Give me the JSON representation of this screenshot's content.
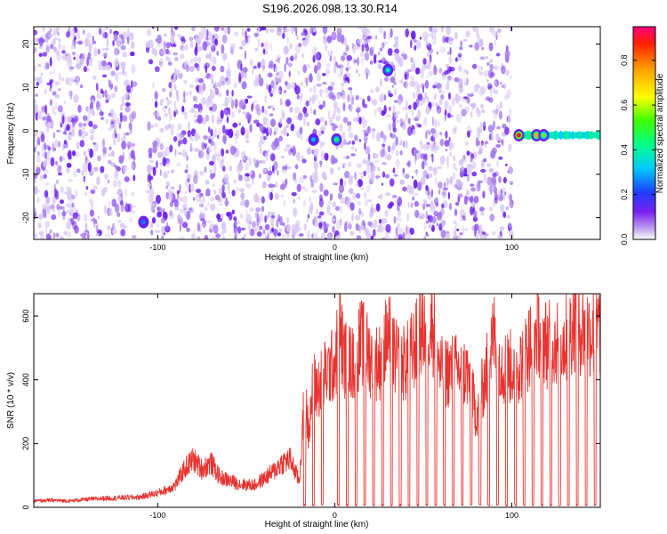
{
  "figure_title": "S196.2026.098.13.30.R14",
  "colors": {
    "snr_line": "#e8332f",
    "frame": "#000000",
    "speckle_light": "#d9c8f5",
    "speckle_mid": "#a37ae8",
    "speckle_dark": "#6a1cf2"
  },
  "chart_data": [
    {
      "type": "heatmap",
      "title": "",
      "xlabel": "Height of straight line (km)",
      "ylabel": "Frequency (Hz)",
      "xlim": [
        -170,
        150
      ],
      "ylim": [
        -25,
        24
      ],
      "x_ticks": [
        -100,
        0,
        100
      ],
      "x_tick_labels": [
        "-100",
        "0",
        "100"
      ],
      "y_ticks": [
        -20,
        -10,
        0,
        10,
        20
      ],
      "y_tick_labels": [
        "-20",
        "-10",
        "0",
        "10",
        "20"
      ],
      "colorbar": {
        "label": "Normalized spectral amplitude",
        "range": [
          0.0,
          0.95
        ],
        "ticks": [
          0.0,
          0.2,
          0.4,
          0.6,
          0.8
        ],
        "tick_labels": [
          "0.0",
          "0.2",
          "0.4",
          "0.6",
          "0.8"
        ],
        "colormap": "rainbow"
      },
      "noise_region": {
        "x_range": [
          -170,
          100
        ],
        "y_range": [
          -25,
          24
        ],
        "typical_amplitude": 0.1
      },
      "blank_bands_x": [
        [
          -113,
          -106
        ],
        [
          100,
          150
        ]
      ],
      "carrier_line": {
        "x_range": [
          102,
          150
        ],
        "y": -1,
        "amplitude_range": [
          0.3,
          0.9
        ]
      },
      "hotspots": [
        {
          "x": -108,
          "y": -21,
          "value": 0.25
        },
        {
          "x": -12,
          "y": -2,
          "value": 0.3
        },
        {
          "x": 1,
          "y": -2,
          "value": 0.45
        },
        {
          "x": 30,
          "y": 14,
          "value": 0.4
        },
        {
          "x": 104,
          "y": -1,
          "value": 0.9
        },
        {
          "x": 114,
          "y": -1,
          "value": 0.75
        },
        {
          "x": 118,
          "y": -1,
          "value": 0.55
        }
      ]
    },
    {
      "type": "line",
      "title": "",
      "xlabel": "Height of straight line (km)",
      "ylabel": "SNR (10 * v/v)",
      "xlim": [
        -170,
        150
      ],
      "ylim": [
        0,
        670
      ],
      "x_ticks": [
        -100,
        0,
        100
      ],
      "x_tick_labels": [
        "-100",
        "0",
        "100"
      ],
      "y_ticks": [
        0,
        200,
        400,
        600
      ],
      "y_tick_labels": [
        "0",
        "200",
        "400",
        "600"
      ],
      "series": [
        {
          "name": "SNR",
          "x": [
            -170,
            -160,
            -150,
            -140,
            -130,
            -120,
            -110,
            -100,
            -95,
            -90,
            -85,
            -80,
            -75,
            -70,
            -65,
            -60,
            -55,
            -50,
            -45,
            -40,
            -35,
            -30,
            -25,
            -20,
            -17,
            -15,
            -12,
            -10,
            -5,
            0,
            3,
            5,
            10,
            15,
            20,
            25,
            30,
            35,
            40,
            45,
            50,
            55,
            60,
            65,
            70,
            75,
            80,
            85,
            90,
            95,
            100,
            105,
            110,
            115,
            120,
            125,
            130,
            135,
            140,
            145,
            150
          ],
          "y": [
            20,
            22,
            20,
            25,
            28,
            30,
            32,
            45,
            55,
            70,
            120,
            150,
            120,
            140,
            95,
            85,
            75,
            70,
            70,
            90,
            110,
            140,
            150,
            80,
            350,
            250,
            390,
            370,
            420,
            450,
            560,
            470,
            450,
            520,
            470,
            450,
            540,
            460,
            450,
            500,
            570,
            580,
            420,
            430,
            430,
            420,
            290,
            410,
            540,
            440,
            440,
            450,
            510,
            560,
            510,
            520,
            520,
            580,
            560,
            550,
            560
          ]
        }
      ],
      "dropouts_to_zero_x": [
        -17,
        -12,
        -7,
        2,
        7,
        12,
        17,
        22,
        27,
        32,
        37,
        42,
        47,
        52,
        57,
        62,
        67,
        72,
        77,
        82,
        87,
        92,
        97,
        102,
        107,
        112,
        117,
        122,
        127,
        132,
        137,
        142,
        147
      ]
    }
  ]
}
